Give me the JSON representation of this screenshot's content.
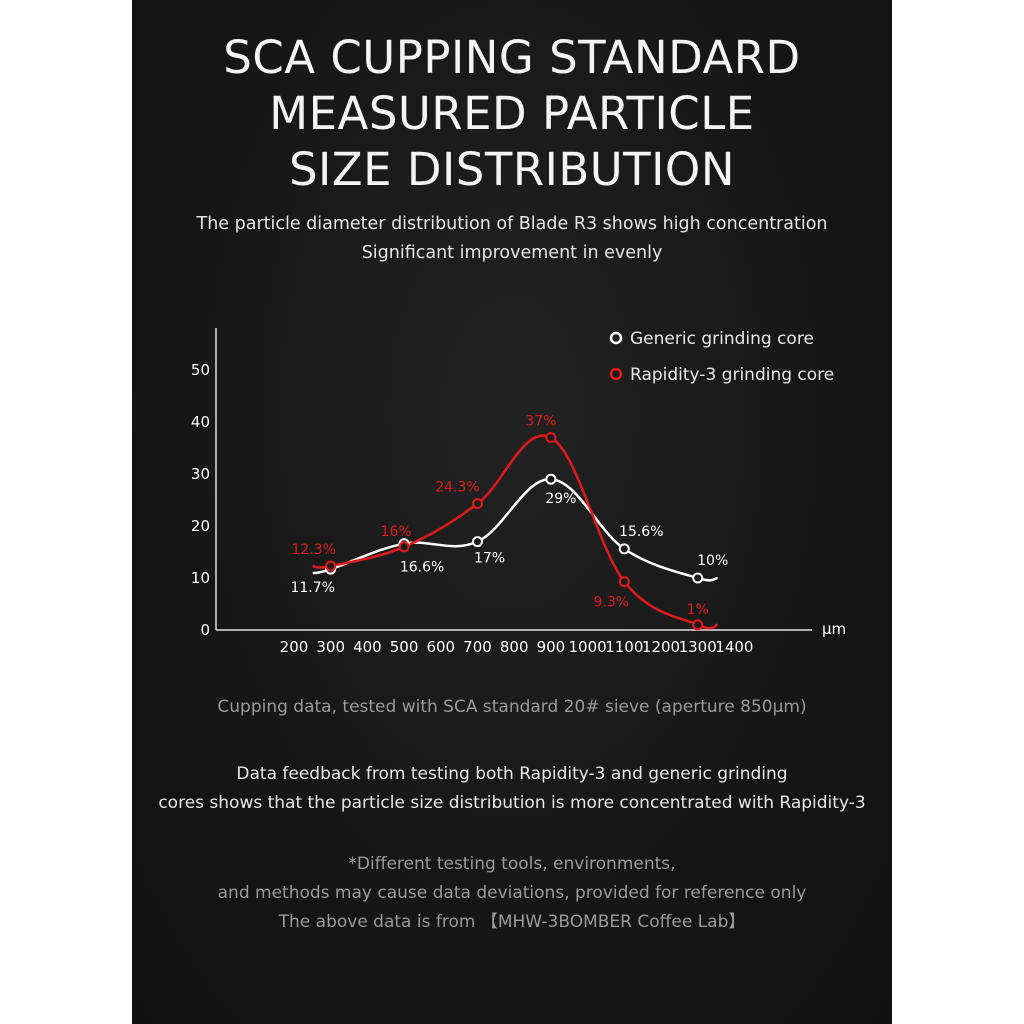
{
  "title_lines": [
    "SCA CUPPING STANDARD",
    "MEASURED PARTICLE",
    "SIZE DISTRIBUTION"
  ],
  "subtitle_lines": [
    "The particle diameter distribution of Blade R3 shows high concentration",
    "Significant improvement in evenly"
  ],
  "chart_data": {
    "type": "line",
    "x_unit": "μm",
    "x_ticks": [
      "200",
      "300",
      "400",
      "500",
      "600",
      "700",
      "800",
      "900",
      "1000",
      "1100",
      "1200",
      "1300",
      "1400"
    ],
    "y_ticks": [
      "0",
      "10",
      "20",
      "30",
      "40",
      "50"
    ],
    "xlim": [
      200,
      1400
    ],
    "ylim": [
      0,
      50
    ],
    "grid": false,
    "legend_position": "top-right",
    "series": [
      {
        "name": "Generic grinding core",
        "color": "#ffffff",
        "x": [
          300,
          500,
          700,
          900,
          1100,
          1300
        ],
        "y": [
          11.7,
          16.6,
          17,
          29,
          15.6,
          10
        ],
        "labels": [
          "11.7%",
          "16.6%",
          "17%",
          "29%",
          "15.6%",
          "10%"
        ]
      },
      {
        "name": "Rapidity-3 grinding core",
        "color": "#e01a1a",
        "x": [
          300,
          500,
          700,
          900,
          1100,
          1300
        ],
        "y": [
          12.3,
          16,
          24.3,
          37,
          9.3,
          1
        ],
        "labels": [
          "12.3%",
          "16%",
          "24.3%",
          "37%",
          "9.3%",
          "1%"
        ]
      }
    ]
  },
  "caption": "Cupping data, tested with SCA standard 20# sieve (aperture 850μm)",
  "feedback_lines": [
    "Data feedback from testing both Rapidity-3 and generic grinding",
    "cores shows that the particle size distribution is more concentrated with Rapidity-3"
  ],
  "note_lines": [
    "*Different testing tools, environments,",
    "and methods may cause data deviations, provided for reference only",
    "The above data is from 【MHW-3BOMBER Coffee Lab】"
  ]
}
